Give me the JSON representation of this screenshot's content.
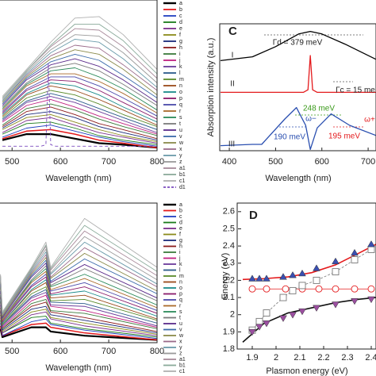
{
  "chart_data": [
    {
      "type": "line",
      "xlabel": "Wavelength (nm)",
      "x": [
        480,
        530,
        580,
        630,
        680,
        730,
        800
      ],
      "xlim": [
        475,
        800
      ],
      "xticks": [
        500,
        600,
        700,
        800
      ],
      "ylim": [
        0,
        100
      ],
      "legend": "right",
      "series": [
        {
          "name": "a",
          "color": "#000000",
          "values": [
            7,
            11,
            11,
            8,
            5,
            4,
            2
          ]
        },
        {
          "name": "b",
          "color": "#e41a1c",
          "values": [
            8,
            13,
            14,
            11,
            7,
            5,
            2
          ]
        },
        {
          "name": "c",
          "color": "#1f3fbf",
          "values": [
            9,
            15,
            17,
            13,
            9,
            6,
            3
          ]
        },
        {
          "name": "d",
          "color": "#1a7a1a",
          "values": [
            11,
            18,
            19,
            15,
            10,
            7,
            4
          ]
        },
        {
          "name": "e",
          "color": "#7b2d8b",
          "values": [
            12,
            20,
            22,
            17,
            12,
            9,
            5
          ]
        },
        {
          "name": "f",
          "color": "#8a8a1a",
          "values": [
            14,
            22,
            24,
            19,
            14,
            10,
            6
          ]
        },
        {
          "name": "g",
          "color": "#1a2a7a",
          "values": [
            15,
            24,
            26,
            22,
            16,
            12,
            7
          ]
        },
        {
          "name": "h",
          "color": "#8b1a1a",
          "values": [
            16,
            26,
            29,
            24,
            18,
            14,
            8
          ]
        },
        {
          "name": "i",
          "color": "#3a7a3a",
          "values": [
            17,
            28,
            31,
            27,
            21,
            16,
            10
          ]
        },
        {
          "name": "j",
          "color": "#c02080",
          "values": [
            19,
            30,
            34,
            29,
            23,
            18,
            11
          ]
        },
        {
          "name": "k",
          "color": "#6a3a9a",
          "values": [
            20,
            32,
            36,
            32,
            26,
            20,
            12
          ]
        },
        {
          "name": "l",
          "color": "#2a5a8a",
          "values": [
            21,
            33,
            38,
            34,
            28,
            22,
            14
          ]
        },
        {
          "name": "m",
          "color": "#5a8a2a",
          "values": [
            22,
            35,
            40,
            37,
            31,
            24,
            16
          ]
        },
        {
          "name": "n",
          "color": "#9a4a1a",
          "values": [
            23,
            37,
            43,
            40,
            34,
            27,
            17
          ]
        },
        {
          "name": "o",
          "color": "#1a8a8a",
          "values": [
            24,
            38,
            45,
            43,
            37,
            29,
            19
          ]
        },
        {
          "name": "p",
          "color": "#8a1a6a",
          "values": [
            25,
            40,
            47,
            46,
            40,
            32,
            21
          ]
        },
        {
          "name": "q",
          "color": "#4a4aaa",
          "values": [
            26,
            41,
            49,
            49,
            43,
            35,
            23
          ]
        },
        {
          "name": "r",
          "color": "#aa6a2a",
          "values": [
            27,
            43,
            51,
            51,
            46,
            38,
            25
          ]
        },
        {
          "name": "s",
          "color": "#2a8a5a",
          "values": [
            28,
            44,
            53,
            55,
            49,
            41,
            27
          ]
        },
        {
          "name": "t",
          "color": "#7a7a7a",
          "values": [
            29,
            45,
            55,
            58,
            53,
            44,
            30
          ]
        },
        {
          "name": "u",
          "color": "#5a2a8a",
          "values": [
            30,
            47,
            57,
            61,
            56,
            47,
            32
          ]
        },
        {
          "name": "v",
          "color": "#3a6aaa",
          "values": [
            31,
            48,
            59,
            64,
            60,
            50,
            35
          ]
        },
        {
          "name": "w",
          "color": "#8a8a4a",
          "values": [
            32,
            49,
            61,
            67,
            64,
            54,
            37
          ]
        },
        {
          "name": "x",
          "color": "#9a6a8a",
          "values": [
            33,
            50,
            63,
            70,
            68,
            57,
            40
          ]
        },
        {
          "name": "y",
          "color": "#6a9aaa",
          "values": [
            33,
            51,
            65,
            74,
            72,
            61,
            42
          ]
        },
        {
          "name": "z",
          "color": "#9a9a9a",
          "values": [
            34,
            52,
            67,
            77,
            76,
            65,
            45
          ]
        },
        {
          "name": "a1",
          "color": "#a88a9a",
          "values": [
            35,
            53,
            69,
            81,
            80,
            69,
            48
          ]
        },
        {
          "name": "b1",
          "color": "#8aaa9a",
          "values": [
            35,
            53,
            70,
            84,
            84,
            73,
            51
          ]
        },
        {
          "name": "c1",
          "color": "#b0b0b0",
          "values": [
            36,
            54,
            72,
            88,
            89,
            77,
            54
          ]
        },
        {
          "name": "d1",
          "color": "#7b4bbf",
          "dash": true,
          "x": [
            480,
            560,
            570,
            575,
            580,
            590,
            800
          ],
          "values": [
            3,
            3,
            4,
            58,
            4,
            3,
            3
          ]
        }
      ]
    },
    {
      "type": "line",
      "xlabel": "Wavelength (nm)",
      "x": [
        476,
        480,
        540,
        570,
        580,
        650,
        800
      ],
      "xlim": [
        475,
        800
      ],
      "xticks": [
        500,
        600,
        700,
        800
      ],
      "ylim": [
        0,
        100
      ],
      "legend": "right",
      "series": [
        {
          "name": "a",
          "color": "#000000",
          "values": [
            10,
            4,
            11,
            11,
            8,
            5,
            2
          ]
        },
        {
          "name": "b",
          "color": "#e41a1c",
          "values": [
            12,
            5,
            13,
            14,
            11,
            7,
            2
          ]
        },
        {
          "name": "c",
          "color": "#1f3fbf",
          "values": [
            14,
            5,
            15,
            17,
            13,
            9,
            3
          ]
        },
        {
          "name": "d",
          "color": "#1a7a1a",
          "values": [
            16,
            7,
            18,
            19,
            14,
            10,
            4
          ]
        },
        {
          "name": "e",
          "color": "#7b2d8b",
          "values": [
            18,
            7,
            20,
            22,
            17,
            12,
            5
          ]
        },
        {
          "name": "f",
          "color": "#8a8a1a",
          "values": [
            20,
            8,
            22,
            24,
            18,
            14,
            6
          ]
        },
        {
          "name": "g",
          "color": "#1a2a7a",
          "values": [
            22,
            9,
            24,
            26,
            20,
            16,
            7
          ]
        },
        {
          "name": "h",
          "color": "#8b1a1a",
          "values": [
            23,
            10,
            26,
            29,
            22,
            18,
            8
          ]
        },
        {
          "name": "i",
          "color": "#3a7a3a",
          "values": [
            25,
            10,
            28,
            31,
            23,
            21,
            10
          ]
        },
        {
          "name": "j",
          "color": "#c02080",
          "values": [
            27,
            11,
            30,
            34,
            26,
            23,
            11
          ]
        },
        {
          "name": "k",
          "color": "#6a3a9a",
          "values": [
            29,
            12,
            32,
            36,
            27,
            26,
            12
          ]
        },
        {
          "name": "l",
          "color": "#2a5a8a",
          "values": [
            30,
            13,
            33,
            38,
            29,
            28,
            14
          ]
        },
        {
          "name": "m",
          "color": "#5a8a2a",
          "values": [
            32,
            13,
            35,
            40,
            30,
            31,
            16
          ]
        },
        {
          "name": "n",
          "color": "#9a4a1a",
          "values": [
            33,
            14,
            37,
            43,
            32,
            34,
            17
          ]
        },
        {
          "name": "o",
          "color": "#1a8a8a",
          "values": [
            34,
            14,
            38,
            45,
            34,
            37,
            19
          ]
        },
        {
          "name": "p",
          "color": "#8a1a6a",
          "values": [
            36,
            15,
            40,
            47,
            35,
            40,
            21
          ]
        },
        {
          "name": "q",
          "color": "#4a4aaa",
          "values": [
            37,
            16,
            41,
            49,
            37,
            43,
            23
          ]
        },
        {
          "name": "r",
          "color": "#aa6a2a",
          "values": [
            39,
            16,
            43,
            51,
            38,
            46,
            25
          ]
        },
        {
          "name": "s",
          "color": "#2a8a5a",
          "values": [
            40,
            17,
            44,
            53,
            40,
            49,
            27
          ]
        },
        {
          "name": "t",
          "color": "#7a7a7a",
          "values": [
            41,
            17,
            45,
            55,
            41,
            53,
            30
          ]
        },
        {
          "name": "u",
          "color": "#5a2a8a",
          "values": [
            42,
            18,
            47,
            57,
            43,
            56,
            32
          ]
        },
        {
          "name": "v",
          "color": "#3a6aaa",
          "values": [
            43,
            19,
            48,
            59,
            44,
            60,
            35
          ]
        },
        {
          "name": "w",
          "color": "#8a8a4a",
          "values": [
            44,
            19,
            49,
            61,
            46,
            64,
            37
          ]
        },
        {
          "name": "x",
          "color": "#9a6a8a",
          "values": [
            45,
            20,
            50,
            63,
            47,
            68,
            40
          ]
        },
        {
          "name": "y",
          "color": "#6a9aaa",
          "values": [
            46,
            20,
            51,
            65,
            49,
            72,
            42
          ]
        },
        {
          "name": "z",
          "color": "#9a9a9a",
          "values": [
            47,
            20,
            52,
            67,
            50,
            76,
            45
          ]
        },
        {
          "name": "a1",
          "color": "#a88a9a",
          "values": [
            48,
            21,
            53,
            69,
            52,
            80,
            48
          ]
        },
        {
          "name": "b1",
          "color": "#8aaa9a",
          "values": [
            48,
            21,
            53,
            70,
            53,
            84,
            51
          ]
        },
        {
          "name": "c1",
          "color": "#b0b0b0",
          "values": [
            49,
            22,
            54,
            72,
            54,
            89,
            54
          ]
        }
      ]
    },
    {
      "type": "line",
      "label": "C",
      "xlabel": "Wavelength (nm)",
      "ylabel": "Absorption intensity (a.u.)",
      "xlim": [
        381,
        717
      ],
      "xticks": [
        400,
        500,
        600,
        700
      ],
      "ylim": [
        0,
        100
      ],
      "series": [
        {
          "color": "#000000",
          "x": [
            381,
            450,
            500,
            550,
            575,
            600,
            650,
            717
          ],
          "values": [
            71,
            74,
            82,
            92,
            94,
            92,
            84,
            72
          ]
        },
        {
          "color": "#e41a1c",
          "x": [
            381,
            560,
            570,
            575,
            580,
            590,
            717
          ],
          "values": [
            46,
            46,
            48,
            75,
            48,
            46,
            46
          ]
        },
        {
          "color": "#2a4fb0",
          "x": [
            381,
            450,
            470,
            480,
            520,
            545,
            565,
            575,
            590,
            620,
            660,
            717
          ],
          "values": [
            4,
            5,
            5,
            9,
            25,
            34,
            20,
            1,
            18,
            29,
            20,
            12
          ]
        }
      ],
      "annotations": [
        {
          "text": "I",
          "color": "#222222"
        },
        {
          "text": "II",
          "color": "#222222"
        },
        {
          "text": "III",
          "color": "#222222"
        },
        {
          "text": "Γd = 379 meV",
          "color": "#222222"
        },
        {
          "text": "Γc = 15 me",
          "color": "#222222"
        },
        {
          "text": "248 meV",
          "color": "#3a9a1a"
        },
        {
          "text": "ω−",
          "color": "#2a4fb0"
        },
        {
          "text": "ω+",
          "color": "#e41a1c"
        },
        {
          "text": "190 meV",
          "color": "#2a4fb0"
        },
        {
          "text": "195 meV",
          "color": "#e41a1c"
        }
      ]
    },
    {
      "type": "scatter",
      "label": "D",
      "xlabel": "Plasmon energy (eV)",
      "ylabel": "Energy (eV)",
      "xlim": [
        1.84,
        2.42
      ],
      "xticks": [
        1.9,
        2,
        2.1,
        2.2,
        2.3,
        2.4
      ],
      "ylim": [
        1.8,
        2.65
      ],
      "yticks": [
        1.8,
        1.9,
        2,
        2.1,
        2.2,
        2.3,
        2.4,
        2.5,
        2.6
      ],
      "series": [
        {
          "color": "#e41a1c",
          "line": true,
          "x": [
            1.86,
            1.95,
            2.05,
            2.15,
            2.25,
            2.35,
            2.42
          ],
          "values": [
            2.205,
            2.21,
            2.22,
            2.245,
            2.29,
            2.36,
            2.41
          ]
        },
        {
          "color": "#111111",
          "line": true,
          "x": [
            1.86,
            1.95,
            2.05,
            2.15,
            2.25,
            2.35,
            2.42
          ],
          "values": [
            1.84,
            1.95,
            2.01,
            2.04,
            2.07,
            2.09,
            2.1
          ]
        },
        {
          "color": "#e41a1c",
          "line": true,
          "marker": "circle",
          "x": [
            1.9,
            1.96,
            2.04,
            2.11,
            2.18,
            2.25,
            2.33,
            2.4
          ],
          "values": [
            2.15,
            2.15,
            2.15,
            2.15,
            2.15,
            2.15,
            2.15,
            2.15
          ]
        },
        {
          "color": "#777777",
          "line": true,
          "marker": "square",
          "x": [
            1.9,
            1.93,
            1.96,
            2.03,
            2.07,
            2.11,
            2.17,
            2.25,
            2.33,
            2.4
          ],
          "values": [
            1.91,
            1.96,
            2.01,
            2.1,
            2.14,
            2.17,
            2.2,
            2.25,
            2.32,
            2.38
          ]
        },
        {
          "color": "#3a4fb0",
          "marker": "triangle-up",
          "x": [
            1.9,
            1.93,
            1.96,
            2.03,
            2.07,
            2.11,
            2.17,
            2.25,
            2.33,
            2.4
          ],
          "values": [
            2.21,
            2.21,
            2.21,
            2.22,
            2.23,
            2.24,
            2.27,
            2.31,
            2.36,
            2.41
          ]
        },
        {
          "color": "#9b4fa0",
          "marker": "triangle-down",
          "x": [
            1.9,
            1.93,
            1.96,
            2.03,
            2.07,
            2.11,
            2.17,
            2.25,
            2.33,
            2.4
          ],
          "values": [
            1.9,
            1.93,
            1.95,
            1.98,
            2,
            2.02,
            2.04,
            2.06,
            2.08,
            2.09
          ]
        }
      ]
    }
  ]
}
